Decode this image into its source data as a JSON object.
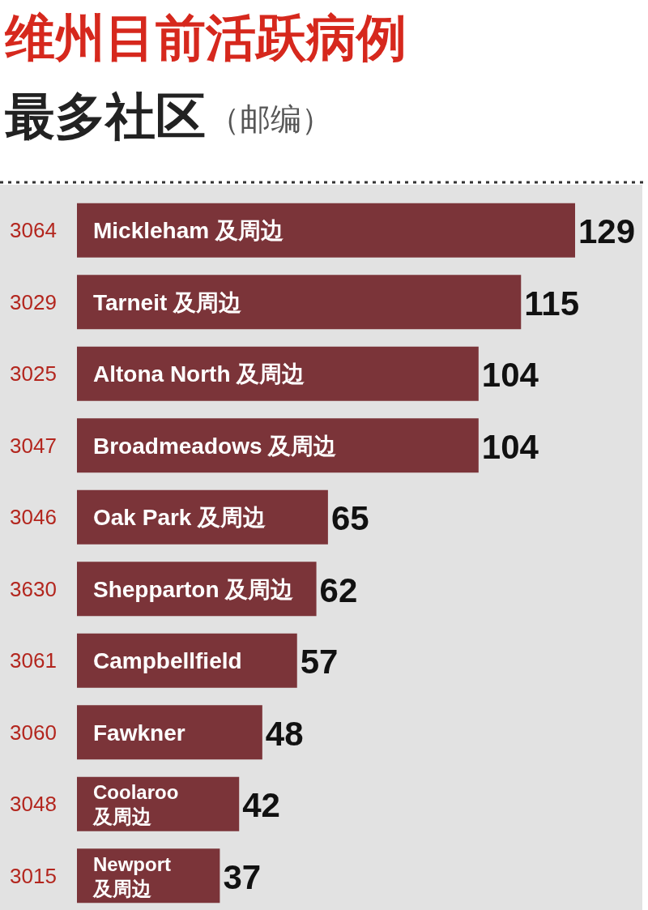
{
  "chart_data": {
    "type": "bar",
    "orientation": "horizontal",
    "title": "维州目前活跃病例",
    "subtitle": "最多社区",
    "ylabel": "（邮编）",
    "categories": [
      "3064",
      "3029",
      "3025",
      "3047",
      "3046",
      "3630",
      "3061",
      "3060",
      "3048",
      "3015"
    ],
    "values": [
      129,
      115,
      104,
      104,
      65,
      62,
      57,
      48,
      42,
      37
    ],
    "color": "#7b3439",
    "data_labels": true,
    "annotations": [
      {
        "text": "Mickleham 及周边",
        "y": "3064"
      },
      {
        "text": "Tarneit 及周边",
        "y": "3029"
      },
      {
        "text": "Altona North 及周边",
        "y": "3025"
      },
      {
        "text": "Broadmeadows 及周边",
        "y": "3047"
      },
      {
        "text": "Oak Park 及周边",
        "y": "3046"
      },
      {
        "text": "Shepparton 及周边",
        "y": "3630"
      },
      {
        "text": "Campbellfield",
        "y": "3061"
      },
      {
        "text": "Fawkner",
        "y": "3060"
      },
      {
        "text": "Coolaroo 及周边",
        "y": "3048"
      },
      {
        "text": "Newport 及周边",
        "y": "3015"
      }
    ]
  }
}
